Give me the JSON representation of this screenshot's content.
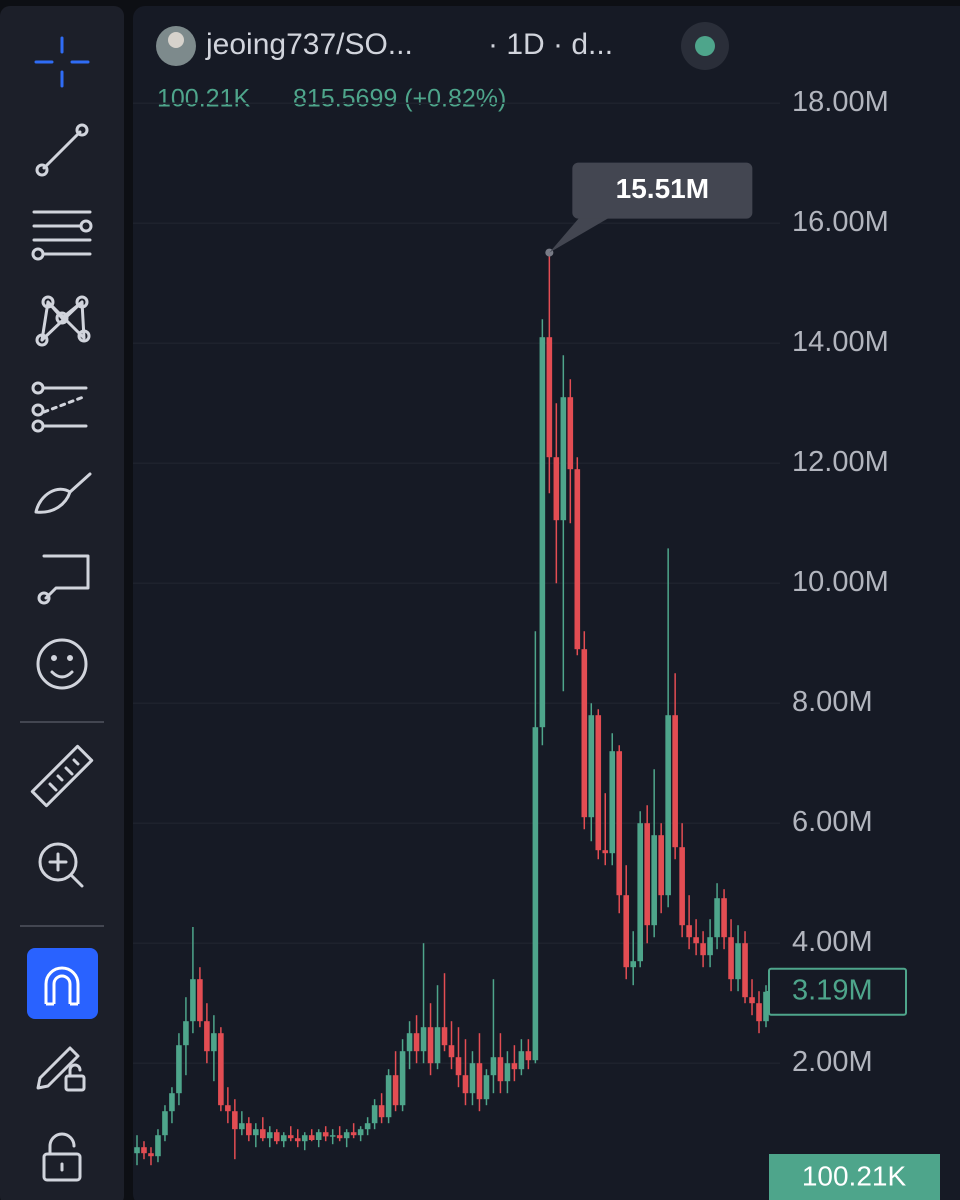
{
  "chart_data": {
    "type": "candlestick",
    "title": "jeoing737/SO...",
    "subtitle": "· 1D · d...",
    "volume_label": "100.21K",
    "change_label": "815.5699 (+0.82%)",
    "up_color": "#4ea58b",
    "down_color": "#e34d53",
    "ylim": [
      -0.28,
      19.72
    ],
    "yticks": [
      {
        "value": 2,
        "label": "2.00M"
      },
      {
        "value": 4,
        "label": "4.00M"
      },
      {
        "value": 6,
        "label": "6.00M"
      },
      {
        "value": 8,
        "label": "8.00M"
      },
      {
        "value": 10,
        "label": "10.00M"
      },
      {
        "value": 12,
        "label": "12.00M"
      },
      {
        "value": 14,
        "label": "14.00M"
      },
      {
        "value": 16,
        "label": "16.00M"
      },
      {
        "value": 18,
        "label": "18.00M"
      }
    ],
    "grid": true,
    "annotation": {
      "value": 15.51,
      "label": "15.51M"
    },
    "last_price": {
      "value": 3.19,
      "label": "3.19M"
    },
    "open": [
      0.5,
      0.6,
      0.5,
      0.45,
      0.8,
      1.2,
      1.5,
      2.3,
      2.7,
      3.4,
      2.7,
      2.2,
      2.5,
      1.3,
      1.2,
      0.9,
      1.0,
      0.8,
      0.9,
      0.75,
      0.85,
      0.7,
      0.8,
      0.75,
      0.7,
      0.8,
      0.72,
      0.85,
      0.78,
      0.8,
      0.75,
      0.85,
      0.8,
      0.9,
      1.0,
      1.3,
      1.1,
      1.8,
      1.3,
      2.2,
      2.5,
      2.2,
      2.6,
      2.0,
      2.6,
      2.3,
      2.1,
      1.8,
      1.5,
      2.0,
      1.4,
      1.8,
      2.1,
      1.7,
      2.0,
      1.9,
      2.2,
      2.05,
      7.6,
      14.1,
      12.1,
      11.05,
      13.1,
      11.9,
      8.9,
      6.1,
      7.8,
      5.55,
      5.5,
      7.2,
      4.8,
      3.6,
      3.7,
      6.0,
      4.3,
      5.8,
      4.8,
      7.8,
      5.6,
      4.3,
      4.1,
      4.0,
      3.8,
      4.1,
      4.75,
      4.1,
      3.4,
      4.0,
      3.1,
      3.0,
      2.7
    ],
    "high": [
      0.8,
      0.7,
      0.6,
      0.9,
      1.3,
      1.6,
      2.5,
      3.1,
      4.27,
      3.6,
      3.0,
      2.8,
      2.6,
      1.6,
      1.4,
      1.2,
      1.1,
      1.0,
      1.1,
      0.95,
      0.9,
      0.85,
      0.95,
      0.9,
      0.85,
      0.9,
      0.9,
      0.95,
      0.9,
      0.95,
      0.9,
      1.0,
      0.95,
      1.1,
      1.4,
      1.5,
      1.9,
      2.2,
      2.4,
      2.7,
      2.8,
      4.0,
      3.0,
      3.3,
      3.5,
      2.7,
      2.6,
      2.4,
      2.2,
      2.5,
      1.9,
      3.4,
      2.5,
      2.2,
      2.3,
      2.4,
      2.4,
      9.2,
      14.4,
      15.51,
      13.0,
      13.8,
      13.4,
      12.1,
      9.2,
      8.0,
      7.9,
      6.5,
      7.5,
      7.3,
      5.3,
      4.2,
      6.2,
      6.3,
      6.9,
      6.0,
      10.58,
      8.5,
      6.0,
      4.8,
      4.4,
      4.2,
      4.4,
      5.0,
      4.9,
      4.4,
      4.3,
      4.2,
      3.4,
      3.2,
      3.3
    ],
    "low": [
      0.3,
      0.4,
      0.3,
      0.35,
      0.7,
      1.0,
      1.3,
      1.8,
      2.5,
      2.6,
      2.0,
      1.7,
      1.2,
      1.0,
      0.4,
      0.8,
      0.7,
      0.6,
      0.7,
      0.6,
      0.65,
      0.6,
      0.7,
      0.6,
      0.55,
      0.7,
      0.6,
      0.7,
      0.65,
      0.7,
      0.6,
      0.75,
      0.7,
      0.8,
      0.9,
      1.0,
      1.0,
      1.2,
      1.2,
      1.9,
      2.0,
      2.0,
      1.8,
      1.9,
      2.2,
      1.9,
      1.6,
      1.3,
      1.3,
      1.2,
      1.3,
      1.5,
      1.5,
      1.5,
      1.7,
      1.8,
      1.9,
      2.0,
      7.3,
      11.5,
      10.0,
      8.2,
      11.0,
      8.8,
      5.9,
      5.7,
      5.4,
      5.3,
      5.3,
      4.5,
      3.4,
      3.3,
      3.6,
      4.0,
      4.1,
      4.5,
      4.6,
      5.4,
      4.1,
      3.9,
      3.8,
      3.6,
      3.6,
      3.9,
      3.9,
      3.2,
      3.2,
      3.0,
      2.8,
      2.5,
      2.6
    ],
    "close": [
      0.6,
      0.5,
      0.45,
      0.8,
      1.2,
      1.5,
      2.3,
      2.7,
      3.4,
      2.7,
      2.2,
      2.5,
      1.3,
      1.2,
      0.9,
      1.0,
      0.8,
      0.9,
      0.75,
      0.85,
      0.7,
      0.8,
      0.75,
      0.7,
      0.8,
      0.72,
      0.85,
      0.78,
      0.8,
      0.75,
      0.85,
      0.8,
      0.9,
      1.0,
      1.3,
      1.1,
      1.8,
      1.3,
      2.2,
      2.5,
      2.2,
      2.6,
      2.0,
      2.6,
      2.3,
      2.1,
      1.8,
      1.5,
      2.0,
      1.4,
      1.8,
      2.1,
      1.7,
      2.0,
      1.9,
      2.2,
      2.05,
      7.6,
      14.1,
      12.1,
      11.05,
      13.1,
      11.9,
      8.9,
      6.1,
      7.8,
      5.55,
      5.5,
      7.2,
      4.8,
      3.6,
      3.7,
      6.0,
      4.3,
      5.8,
      4.8,
      7.8,
      5.6,
      4.3,
      4.1,
      4.0,
      3.8,
      4.1,
      4.75,
      4.1,
      3.4,
      4.0,
      3.1,
      3.0,
      2.7,
      3.19
    ]
  }
}
